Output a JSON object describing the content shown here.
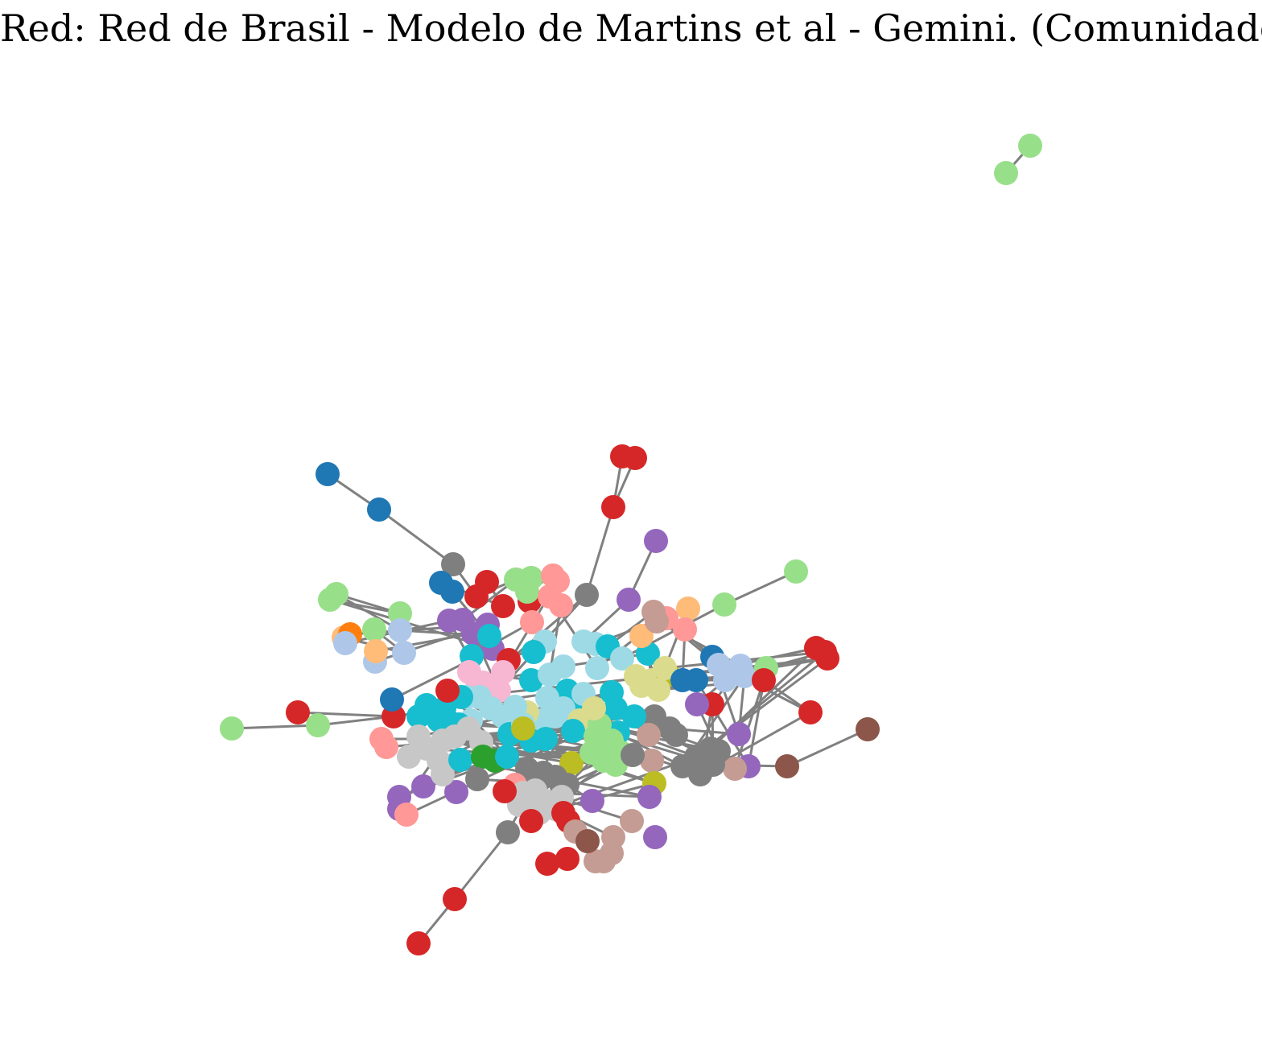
{
  "title": "Red: Red de Brasil - Modelo de Martins et al - Gemini. (Comunidades)",
  "colors": {
    "edge": "#808080",
    "blue": "#1f77b4",
    "light_blue": "#aec7e8",
    "orange": "#ff7f0e",
    "light_orange": "#ffbb78",
    "green": "#2ca02c",
    "light_green": "#98df8a",
    "red": "#d62728",
    "pink_salmon": "#ff9896",
    "purple": "#9467bd",
    "brown": "#8c564b",
    "light_brown": "#c49c94",
    "pink": "#f7b6d2",
    "gray": "#7f7f7f",
    "light_gray": "#c7c7c7",
    "olive": "#bcbd22",
    "khaki": "#dbdb8d",
    "cyan": "#17becf",
    "light_cyan": "#9edae5"
  }
}
